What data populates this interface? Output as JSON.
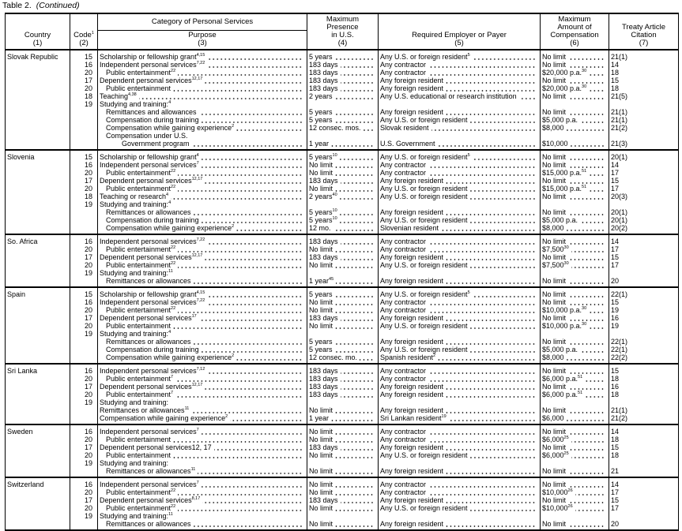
{
  "caption": {
    "table": "Table 2.",
    "continued": "(Continued)"
  },
  "headers": {
    "country": "Country\n(1)",
    "code": "Code",
    "code_sup": "1",
    "code_num": "(2)",
    "category": "Category of Personal Services",
    "purpose": "Purpose\n(3)",
    "presence": "Maximum\nPresence\nin U.S.\n(4)",
    "employer": "Required Employer or Payer\n(5)",
    "compensation": "Maximum\nAmount of\nCompensation\n(6)",
    "citation": "Treaty Article\nCitation\n(7)"
  },
  "countries": [
    {
      "name": "Slovak Republic",
      "lines": [
        {
          "c": "15",
          "p": "Scholarship or fellowship grant",
          "i": 0,
          "ps": "4,15",
          "pr": "5 years",
          "e": "Any U.S. or foreign resident",
          "es": "5",
          "m": "No limit",
          "t": "21(1)"
        },
        {
          "c": "16",
          "p": "Independent personal services",
          "i": 0,
          "ps": "7,22",
          "pr": "183 days",
          "e": "Any contractor",
          "m": "No limit",
          "t": "14"
        },
        {
          "c": "20",
          "p": "Public entertainment",
          "i": 1,
          "ps": "22",
          "pr": "183 days",
          "e": "Any contractor",
          "m": "$20,000 p.a.",
          "ms": "30",
          "t": "18"
        },
        {
          "c": "17",
          "p": "Dependent personal services",
          "i": 0,
          "ps": "12,17",
          "pr": "183 days",
          "e": "Any foreign resident",
          "m": "No limit",
          "t": "15"
        },
        {
          "c": "20",
          "p": "Public entertainment",
          "i": 1,
          "pr": "183 days",
          "e": "Any foreign resident",
          "m": "$20,000 p.a.",
          "ms": "30",
          "t": "18"
        },
        {
          "c": "18",
          "p": "Teaching",
          "i": 0,
          "ps": "4,38",
          "pr": "2 years",
          "e": "Any U.S. educational or research institution",
          "m": "No limit",
          "t": "21(5)"
        },
        {
          "c": "19",
          "p": "Studying and training:",
          "i": 0,
          "ps": "4",
          "nl": true
        },
        {
          "p": "Remittances and allowances",
          "i": 1,
          "pr": "5 years",
          "e": "Any foreign resident",
          "m": "No limit",
          "t": "21(1)"
        },
        {
          "p": "Compensation during training",
          "i": 1,
          "pr": "5 years",
          "e": "Any U.S. or foreign resident",
          "m": "$5,000 p.a.",
          "t": "21(1)"
        },
        {
          "p": "Compensation while gaining experience",
          "i": 1,
          "ps": "2",
          "pr": "12 consec. mos.",
          "e": "Slovak resident",
          "m": "$8,000",
          "t": "21(2)"
        },
        {
          "p": "Compensation under U.S.",
          "i": 1,
          "nl": true
        },
        {
          "p": "Government program",
          "i": 2,
          "pr": "1 year",
          "e": "U.S. Government",
          "m": "$10,000",
          "t": "21(3)"
        }
      ]
    },
    {
      "name": "Slovenia",
      "lines": [
        {
          "c": "15",
          "p": "Scholarship or fellowship grant",
          "i": 0,
          "ps": "4",
          "pr": "5 years",
          "prs": "10",
          "e": "Any U.S. or foreign resident",
          "es": "5",
          "m": "No limit",
          "t": "20(1)"
        },
        {
          "c": "16",
          "p": "Independent personal services",
          "i": 0,
          "ps": "7",
          "pr": "No limit",
          "e": "Any contractor",
          "m": "No limit",
          "t": "14"
        },
        {
          "c": "20",
          "p": "Public entertainment",
          "i": 1,
          "ps": "22",
          "pr": "No limit",
          "e": "Any contractor",
          "m": "$15,000 p.a.",
          "ms": "51",
          "t": "17"
        },
        {
          "c": "17",
          "p": "Dependent personal services",
          "i": 0,
          "ps": "12,17",
          "pr": "183 days",
          "e": "Any foreign resident",
          "m": "No limit",
          "t": "15"
        },
        {
          "c": "20",
          "p": "Public entertainment",
          "i": 1,
          "ps": "22",
          "pr": "No limit",
          "e": "Any U.S. or foreign resident",
          "m": "$15,000 p.a.",
          "ms": "51",
          "t": "17"
        },
        {
          "c": "18",
          "p": "Teaching or research",
          "i": 0,
          "ps": "4",
          "pr": "2 years",
          "prs": "40",
          "e": "Any U.S. or foreign resident",
          "m": "No limit",
          "t": "20(3)"
        },
        {
          "c": "19",
          "p": "Studying and training:",
          "i": 0,
          "ps": "4",
          "nl": true
        },
        {
          "p": "Remittances or allowances",
          "i": 1,
          "pr": "5 years",
          "prs": "10",
          "e": "Any foreign resident",
          "m": "No limit",
          "t": "20(1)"
        },
        {
          "p": "Compensation during training",
          "i": 1,
          "pr": "5 years",
          "prs": "10",
          "e": "Any U.S. or foreign resident",
          "m": "$5,000 p.a.",
          "t": "20(1)"
        },
        {
          "p": "Compensation while gaining experience",
          "i": 1,
          "ps": "2",
          "pr": "12 mo.",
          "e": "Slovenian resident",
          "m": "$8,000",
          "t": "20(2)"
        }
      ]
    },
    {
      "name": "So. Africa",
      "lines": [
        {
          "c": "16",
          "p": "Independent personal services",
          "i": 0,
          "ps": "7,22",
          "pr": "183 days",
          "e": "Any contractor",
          "m": "No limit",
          "t": "14"
        },
        {
          "c": "20",
          "p": "Public entertainment",
          "i": 1,
          "ps": "22",
          "pr": "No limit",
          "e": "Any contractor",
          "m": "$7,500",
          "ms": "30",
          "t": "17"
        },
        {
          "c": "17",
          "p": "Dependent personal services",
          "i": 0,
          "ps": "12,17",
          "pr": "183 days",
          "e": "Any foreign resident",
          "m": "No limit",
          "t": "15"
        },
        {
          "c": "20",
          "p": "Public entertainment",
          "i": 1,
          "ps": "22",
          "pr": "No limit",
          "e": "Any U.S. or foreign resident",
          "m": "$7,500",
          "ms": "30",
          "t": "17"
        },
        {
          "c": "19",
          "p": "Studying and training:",
          "i": 0,
          "ps": "11",
          "nl": true
        },
        {
          "p": "Remittances or allowances",
          "i": 1,
          "pr": "1 year",
          "prs": "45",
          "e": "Any foreign resident",
          "m": "No limit",
          "t": "20"
        }
      ]
    },
    {
      "name": "Spain",
      "lines": [
        {
          "c": "15",
          "p": "Scholarship or fellowship grant",
          "i": 0,
          "ps": "4,15",
          "pr": "5 years",
          "e": "Any U.S. or foreign resident",
          "es": "5",
          "m": "No limit",
          "t": "22(1)"
        },
        {
          "c": "16",
          "p": "Independent personal services",
          "i": 0,
          "ps": "7,22",
          "pr": "No limit",
          "e": "Any contractor",
          "m": "No limit",
          "t": "15"
        },
        {
          "c": "20",
          "p": "Public entertainment",
          "i": 1,
          "ps": "22",
          "pr": "No limit",
          "e": "Any contractor",
          "m": "$10,000 p.a.",
          "ms": "30",
          "t": "19"
        },
        {
          "c": "17",
          "p": "Dependent personal services",
          "i": 0,
          "ps": "17",
          "pr": "183 days",
          "e": "Any foreign resident",
          "m": "No limit",
          "t": "16"
        },
        {
          "c": "20",
          "p": "Public entertainment",
          "i": 1,
          "pr": "No limit",
          "e": "Any U.S. or foreign resident",
          "m": "$10,000 p.a.",
          "ms": "30",
          "t": "19"
        },
        {
          "c": "19",
          "p": "Studying and training:",
          "i": 0,
          "ps": "4",
          "nl": true
        },
        {
          "p": "Remittances or allowances",
          "i": 1,
          "pr": "5 years",
          "e": "Any foreign resident",
          "m": "No limit",
          "t": "22(1)"
        },
        {
          "p": "Compensation during training",
          "i": 1,
          "pr": "5 years",
          "e": "Any U.S. or foreign resident",
          "m": "$5,000 p.a.",
          "t": "22(1)"
        },
        {
          "p": "Compensation while gaining experience",
          "i": 1,
          "ps": "2",
          "pr": "12 consec. mo.",
          "e": "Spanish resident",
          "es": "2",
          "m": "$8,000",
          "t": "22(2)"
        }
      ]
    },
    {
      "name": "Sri Lanka",
      "lines": [
        {
          "c": "16",
          "p": "Independent personal services",
          "i": 0,
          "ps": "7,12",
          "pr": "183 days",
          "e": "Any contractor",
          "m": "No limit",
          "t": "15"
        },
        {
          "c": "20",
          "p": "Public entertainment",
          "i": 1,
          "ps": "7",
          "pr": "183 days",
          "e": "Any contractor",
          "m": "$6,000 p.a.",
          "ms": "51",
          "t": "18"
        },
        {
          "c": "17",
          "p": "Dependent personal services",
          "i": 0,
          "ps": "12,17",
          "pr": "183 days",
          "e": "Any foreign resident",
          "m": "No limit",
          "t": "16"
        },
        {
          "c": "20",
          "p": "Public entertainment",
          "i": 1,
          "ps": "7",
          "pr": "183 days",
          "e": "Any foreign resident",
          "m": "$6,000 p.a.",
          "ms": "51",
          "t": "18"
        },
        {
          "c": "19",
          "p": "Studying and training:",
          "i": 0,
          "nl": true
        },
        {
          "p": "Remittances or allowances",
          "i": 0,
          "ps": "11",
          "pr": "No limit",
          "e": "Any foreign resident",
          "m": "No limit",
          "t": "21(1)"
        },
        {
          "p": "Compensation while gaining experience",
          "i": 0,
          "ps": "2",
          "pr": "1 year",
          "e": "Sri Lankan resident",
          "es": "19",
          "m": "$6,000",
          "t": "21(2)"
        }
      ]
    },
    {
      "name": "Sweden",
      "lines": [
        {
          "c": "16",
          "p": "Independent personal services",
          "i": 0,
          "ps": "7",
          "pr": "No limit",
          "e": "Any contractor",
          "m": "No limit",
          "t": "14"
        },
        {
          "c": "20",
          "p": "Public entertainment",
          "i": 1,
          "pr": "No limit",
          "e": "Any contractor",
          "m": "$6,000",
          "ms": "25",
          "t": "18"
        },
        {
          "c": "17",
          "p": "Dependent personal services12, 17",
          "i": 0,
          "pr": "183 days",
          "e": "Any foreign resident",
          "m": "No limit",
          "t": "15"
        },
        {
          "c": "20",
          "p": "Public entertainment",
          "i": 1,
          "pr": "No limit",
          "e": "Any U.S. or foreign resident",
          "m": "$6,000",
          "ms": "25",
          "t": "18"
        },
        {
          "c": "19",
          "p": "Studying and training:",
          "i": 0,
          "nl": true
        },
        {
          "p": "Remittances or allowances",
          "i": 1,
          "ps": "11",
          "pr": "No limit",
          "e": "Any foreign resident",
          "m": "No limit",
          "t": "21"
        }
      ]
    },
    {
      "name": "Switzerland",
      "lines": [
        {
          "c": "16",
          "p": "Independent personal services",
          "i": 0,
          "ps": "7",
          "pr": "No limit",
          "e": "Any contractor",
          "m": "No limit",
          "t": "14"
        },
        {
          "c": "20",
          "p": "Public entertainment",
          "i": 1,
          "ps": "22",
          "pr": "No limit",
          "e": "Any contractor",
          "m": "$10,000",
          "ms": "26",
          "t": "17"
        },
        {
          "c": "17",
          "p": "Dependent personal services",
          "i": 0,
          "ps": "8,17",
          "pr": "183 days",
          "e": "Any foreign resident",
          "m": "No limit",
          "t": "15"
        },
        {
          "c": "20",
          "p": "Public entertainment",
          "i": 1,
          "ps": "22",
          "pr": "No limit",
          "e": "Any U.S. or foreign resident",
          "m": "$10,000",
          "ms": "26",
          "t": "17"
        },
        {
          "c": "19",
          "p": "Studying and training:",
          "i": 0,
          "ps": "11",
          "nl": true
        },
        {
          "p": "Remittances or allowances",
          "i": 1,
          "pr": "No limit",
          "e": "Any foreign resident",
          "m": "No limit",
          "t": "20"
        }
      ]
    }
  ]
}
